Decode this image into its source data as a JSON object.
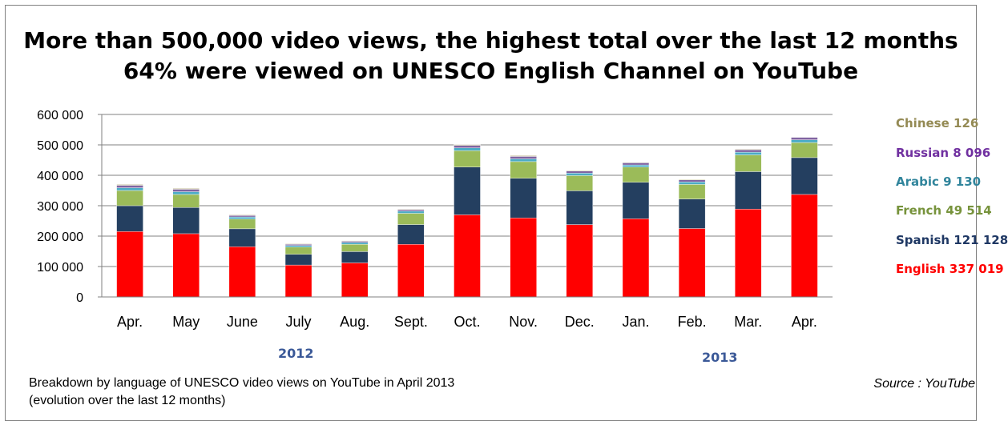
{
  "title_line1": "More than 500,000 video views, the highest total over the last 12 months",
  "title_line2": "64% were viewed on UNESCO English Channel on YouTube",
  "year_labels": [
    "2012",
    "2013"
  ],
  "caption_line1": "Breakdown by language of  UNESCO video views on YouTube in  April 2013",
  "caption_line2": "(evolution over  the last 12 months)",
  "source": "Source : YouTube",
  "legend": [
    {
      "label": "Chinese  126",
      "color": "#948a54"
    },
    {
      "label": "Russian 8 096",
      "color": "#7030a0"
    },
    {
      "label": "Arabic  9 130",
      "color": "#31859c"
    },
    {
      "label": "French 49 514",
      "color": "#77933c"
    },
    {
      "label": "Spanish  121 128",
      "color": "#1f3864"
    },
    {
      "label": "English 337 019",
      "color": "#ff0000"
    }
  ],
  "chart_data": {
    "type": "bar",
    "stacked": true,
    "categories": [
      "Apr.",
      "May",
      "June",
      "July",
      "Aug.",
      "Sept.",
      "Oct.",
      "Nov.",
      "Dec.",
      "Jan.",
      "Feb.",
      "Mar.",
      "Apr."
    ],
    "ylim": [
      0,
      600000
    ],
    "yticks": [
      0,
      100000,
      200000,
      300000,
      400000,
      500000,
      600000
    ],
    "ytick_labels": [
      "0",
      "100 000",
      "200 000",
      "300 000",
      "400 000",
      "500 000",
      "600 000"
    ],
    "grid": true,
    "legend_position": "right",
    "series": [
      {
        "name": "English",
        "color": "#ff0000",
        "values": [
          215000,
          208000,
          165000,
          105000,
          112000,
          173000,
          270000,
          260000,
          238000,
          257000,
          225000,
          289000,
          337019
        ]
      },
      {
        "name": "Spanish",
        "color": "#243f60",
        "values": [
          85000,
          86000,
          59000,
          35000,
          37000,
          65000,
          157000,
          130000,
          111000,
          120000,
          97000,
          123000,
          121128
        ]
      },
      {
        "name": "French",
        "color": "#9bbb59",
        "values": [
          50000,
          43000,
          32000,
          24000,
          24000,
          37000,
          54000,
          55000,
          50000,
          50000,
          48000,
          55000,
          49514
        ]
      },
      {
        "name": "Arabic",
        "color": "#4bacc6",
        "values": [
          9000,
          9000,
          7000,
          5000,
          6000,
          7000,
          9000,
          9000,
          8000,
          7000,
          8000,
          9000,
          9130
        ]
      },
      {
        "name": "Russian",
        "color": "#8064a2",
        "values": [
          8000,
          8000,
          5000,
          4000,
          4000,
          5000,
          8000,
          8000,
          7000,
          7000,
          7000,
          8000,
          8096
        ]
      },
      {
        "name": "Chinese",
        "color": "#c4bd97",
        "values": [
          3000,
          3000,
          2000,
          2000,
          2000,
          2000,
          3000,
          3000,
          2000,
          2000,
          2000,
          2000,
          126
        ]
      }
    ]
  }
}
